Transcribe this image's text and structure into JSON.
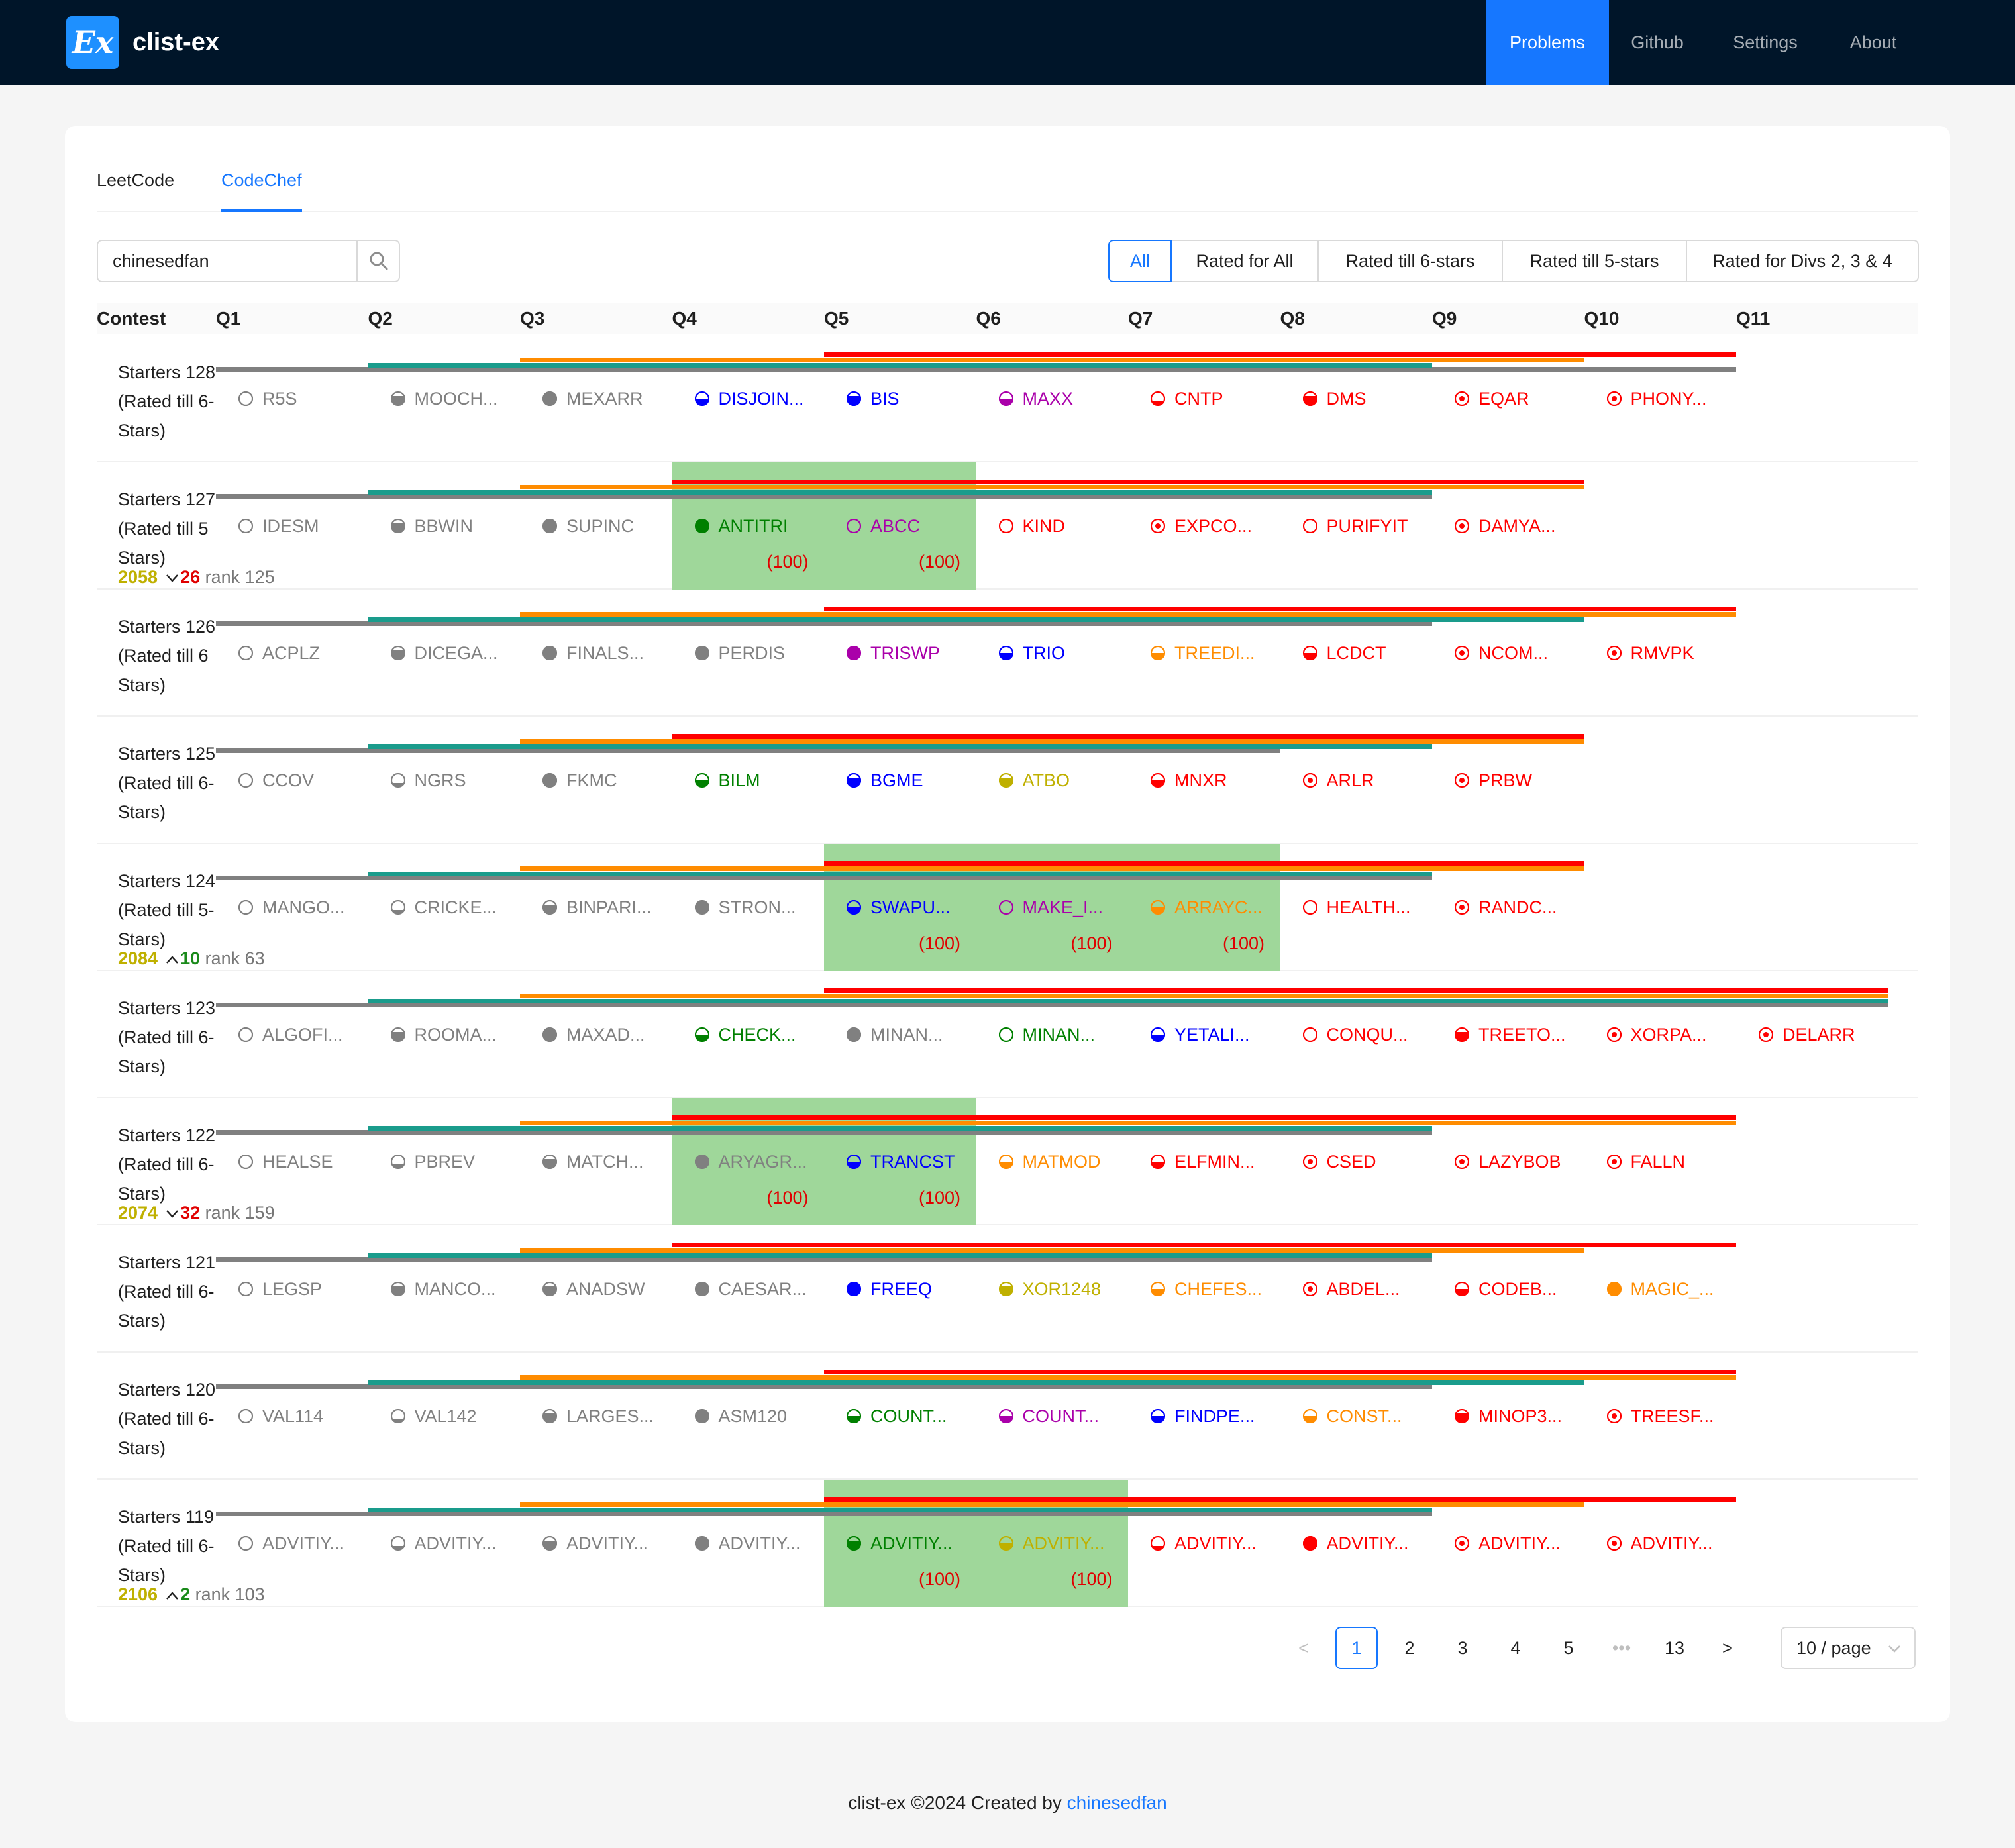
{
  "app": {
    "logo_text": "Ex",
    "title": "clist-ex"
  },
  "nav": [
    {
      "label": "Problems",
      "active": true
    },
    {
      "label": "Github",
      "active": false
    },
    {
      "label": "Settings",
      "active": false
    },
    {
      "label": "About",
      "active": false
    }
  ],
  "tabs": [
    {
      "label": "LeetCode",
      "active": false
    },
    {
      "label": "CodeChef",
      "active": true
    }
  ],
  "search": {
    "value": "chinesedfan",
    "icon": "search-icon"
  },
  "filters": [
    {
      "label": "All",
      "active": true
    },
    {
      "label": "Rated for All",
      "active": false
    },
    {
      "label": "Rated till 6-stars",
      "active": false
    },
    {
      "label": "Rated till 5-stars",
      "active": false
    },
    {
      "label": "Rated for Divs 2, 3 & 4",
      "active": false
    }
  ],
  "table": {
    "headers": [
      "Contest",
      "Q1",
      "Q2",
      "Q3",
      "Q4",
      "Q5",
      "Q6",
      "Q7",
      "Q8",
      "Q9",
      "Q10",
      "Q11"
    ],
    "rows": [
      {
        "name": "Starters 128 (Rated till 6-Stars)",
        "division_ends": [
          10,
          8,
          9,
          10
        ],
        "problems": [
          {
            "code": "R5S",
            "icon": "empty",
            "color": "#808080"
          },
          {
            "code": "MOOCH...",
            "icon": "three-quarter",
            "color": "#808080"
          },
          {
            "code": "MEXARR",
            "icon": "full",
            "color": "#808080"
          },
          {
            "code": "DISJOIN...",
            "icon": "half",
            "color": "#0000ff"
          },
          {
            "code": "BIS",
            "icon": "three-quarter",
            "color": "#0000ff"
          },
          {
            "code": "MAXX",
            "icon": "half",
            "color": "#aa00aa"
          },
          {
            "code": "CNTP",
            "icon": "quarter",
            "color": "#ff0000"
          },
          {
            "code": "DMS",
            "icon": "three-quarter",
            "color": "#ff0000"
          },
          {
            "code": "EQAR",
            "icon": "target",
            "color": "#ff0000"
          },
          {
            "code": "PHONY...",
            "icon": "target",
            "color": "#ff0000"
          }
        ]
      },
      {
        "name": "Starters 127 (Rated till 5 Stars)",
        "division_ends": [
          8,
          8,
          9,
          9
        ],
        "rating": {
          "value": "2058",
          "direction": "down",
          "delta": "26",
          "rank": "rank 125"
        },
        "highlight": [
          3,
          4
        ],
        "problems": [
          {
            "code": "IDESM",
            "icon": "empty",
            "color": "#808080"
          },
          {
            "code": "BBWIN",
            "icon": "three-quarter",
            "color": "#808080"
          },
          {
            "code": "SUPINC",
            "icon": "full",
            "color": "#808080"
          },
          {
            "code": "ANTITRI",
            "icon": "full",
            "color": "#008000",
            "score": "(100)"
          },
          {
            "code": "ABCC",
            "icon": "empty",
            "color": "#aa00aa",
            "score": "(100)"
          },
          {
            "code": "KIND",
            "icon": "empty",
            "color": "#ff0000"
          },
          {
            "code": "EXPCO...",
            "icon": "target",
            "color": "#ff0000"
          },
          {
            "code": "PURIFYIT",
            "icon": "empty",
            "color": "#ff0000"
          },
          {
            "code": "DAMYA...",
            "icon": "target",
            "color": "#ff0000"
          }
        ]
      },
      {
        "name": "Starters 126 (Rated till 6 Stars)",
        "division_ends": [
          8,
          9,
          10,
          10
        ],
        "problems": [
          {
            "code": "ACPLZ",
            "icon": "empty",
            "color": "#808080"
          },
          {
            "code": "DICEGA...",
            "icon": "three-quarter",
            "color": "#808080"
          },
          {
            "code": "FINALS...",
            "icon": "full",
            "color": "#808080"
          },
          {
            "code": "PERDIS",
            "icon": "full",
            "color": "#808080"
          },
          {
            "code": "TRISWP",
            "icon": "full",
            "color": "#aa00aa"
          },
          {
            "code": "TRIO",
            "icon": "half",
            "color": "#0000ff"
          },
          {
            "code": "TREEDI...",
            "icon": "half",
            "color": "#ff8c00"
          },
          {
            "code": "LCDCT",
            "icon": "half",
            "color": "#ff0000"
          },
          {
            "code": "NCOM...",
            "icon": "target",
            "color": "#ff0000"
          },
          {
            "code": "RMVPK",
            "icon": "target",
            "color": "#ff0000"
          }
        ]
      },
      {
        "name": "Starters 125 (Rated till 6-Stars)",
        "division_ends": [
          7,
          8,
          9,
          9
        ],
        "problems": [
          {
            "code": "CCOV",
            "icon": "empty",
            "color": "#808080"
          },
          {
            "code": "NGRS",
            "icon": "quarter",
            "color": "#808080"
          },
          {
            "code": "FKMC",
            "icon": "full",
            "color": "#808080"
          },
          {
            "code": "BILM",
            "icon": "half",
            "color": "#008000"
          },
          {
            "code": "BGME",
            "icon": "three-quarter",
            "color": "#0000ff"
          },
          {
            "code": "ATBO",
            "icon": "three-quarter",
            "color": "#bfb000"
          },
          {
            "code": "MNXR",
            "icon": "half",
            "color": "#ff0000"
          },
          {
            "code": "ARLR",
            "icon": "target",
            "color": "#ff0000"
          },
          {
            "code": "PRBW",
            "icon": "target",
            "color": "#ff0000"
          }
        ]
      },
      {
        "name": "Starters 124 (Rated till 5-Stars)",
        "division_ends": [
          8,
          8,
          9,
          9
        ],
        "rating": {
          "value": "2084",
          "direction": "up",
          "delta": "10",
          "rank": "rank 63"
        },
        "highlight": [
          4,
          6
        ],
        "problems": [
          {
            "code": "MANGO...",
            "icon": "empty",
            "color": "#808080"
          },
          {
            "code": "CRICKE...",
            "icon": "quarter",
            "color": "#808080"
          },
          {
            "code": "BINPARI...",
            "icon": "three-quarter",
            "color": "#808080"
          },
          {
            "code": "STRON...",
            "icon": "full",
            "color": "#808080"
          },
          {
            "code": "SWAPU...",
            "icon": "half",
            "color": "#0000ff",
            "score": "(100)"
          },
          {
            "code": "MAKE_I...",
            "icon": "empty",
            "color": "#aa00aa",
            "score": "(100)"
          },
          {
            "code": "ARRAYC...",
            "icon": "half",
            "color": "#ff8c00",
            "score": "(100)"
          },
          {
            "code": "HEALTH...",
            "icon": "empty",
            "color": "#ff0000"
          },
          {
            "code": "RANDC...",
            "icon": "target",
            "color": "#ff0000"
          }
        ]
      },
      {
        "name": "Starters 123 (Rated till 6-Stars)",
        "division_ends": [
          11,
          11,
          11,
          11
        ],
        "problems": [
          {
            "code": "ALGOFI...",
            "icon": "empty",
            "color": "#808080"
          },
          {
            "code": "ROOMA...",
            "icon": "three-quarter",
            "color": "#808080"
          },
          {
            "code": "MAXAD...",
            "icon": "full",
            "color": "#808080"
          },
          {
            "code": "CHECK...",
            "icon": "half",
            "color": "#008000"
          },
          {
            "code": "MINAN...",
            "icon": "full",
            "color": "#808080"
          },
          {
            "code": "MINAN...",
            "icon": "empty",
            "color": "#008000"
          },
          {
            "code": "YETALI...",
            "icon": "half",
            "color": "#0000ff"
          },
          {
            "code": "CONQU...",
            "icon": "empty",
            "color": "#ff0000"
          },
          {
            "code": "TREETO...",
            "icon": "three-quarter",
            "color": "#ff0000"
          },
          {
            "code": "XORPA...",
            "icon": "target",
            "color": "#ff0000"
          },
          {
            "code": "DELARR",
            "icon": "target",
            "color": "#ff0000"
          }
        ]
      },
      {
        "name": "Starters 122 (Rated till 6-Stars)",
        "division_ends": [
          8,
          8,
          10,
          10
        ],
        "rating": {
          "value": "2074",
          "direction": "down",
          "delta": "32",
          "rank": "rank 159"
        },
        "highlight": [
          3,
          4
        ],
        "problems": [
          {
            "code": "HEALSE",
            "icon": "empty",
            "color": "#808080"
          },
          {
            "code": "PBREV",
            "icon": "quarter",
            "color": "#808080"
          },
          {
            "code": "MATCH...",
            "icon": "three-quarter",
            "color": "#808080"
          },
          {
            "code": "ARYAGR...",
            "icon": "full",
            "color": "#808080",
            "score": "(100)"
          },
          {
            "code": "TRANCST",
            "icon": "half",
            "color": "#0000ff",
            "score": "(100)"
          },
          {
            "code": "MATMOD",
            "icon": "half",
            "color": "#ff8c00"
          },
          {
            "code": "ELFMIN...",
            "icon": "half",
            "color": "#ff0000"
          },
          {
            "code": "CSED",
            "icon": "target",
            "color": "#ff0000"
          },
          {
            "code": "LAZYBOB",
            "icon": "target",
            "color": "#ff0000"
          },
          {
            "code": "FALLN",
            "icon": "target",
            "color": "#ff0000"
          }
        ]
      },
      {
        "name": "Starters 121 (Rated till 6-Stars)",
        "division_ends": [
          8,
          8,
          9,
          10
        ],
        "problems": [
          {
            "code": "LEGSP",
            "icon": "empty",
            "color": "#808080"
          },
          {
            "code": "MANCO...",
            "icon": "three-quarter",
            "color": "#808080"
          },
          {
            "code": "ANADSW",
            "icon": "three-quarter",
            "color": "#808080"
          },
          {
            "code": "CAESAR...",
            "icon": "full",
            "color": "#808080"
          },
          {
            "code": "FREEQ",
            "icon": "full",
            "color": "#0000ff"
          },
          {
            "code": "XOR1248",
            "icon": "three-quarter",
            "color": "#bfb000"
          },
          {
            "code": "CHEFES...",
            "icon": "half",
            "color": "#ff8c00"
          },
          {
            "code": "ABDEL...",
            "icon": "target",
            "color": "#ff0000"
          },
          {
            "code": "CODEB...",
            "icon": "half",
            "color": "#ff0000"
          },
          {
            "code": "MAGIC_...",
            "icon": "full",
            "color": "#ff8c00"
          }
        ]
      },
      {
        "name": "Starters 120 (Rated till 6-Stars)",
        "division_ends": [
          8,
          9,
          10,
          10
        ],
        "problems": [
          {
            "code": "VAL114",
            "icon": "empty",
            "color": "#808080"
          },
          {
            "code": "VAL142",
            "icon": "quarter",
            "color": "#808080"
          },
          {
            "code": "LARGES...",
            "icon": "three-quarter",
            "color": "#808080"
          },
          {
            "code": "ASM120",
            "icon": "full",
            "color": "#808080"
          },
          {
            "code": "COUNT...",
            "icon": "half",
            "color": "#008000"
          },
          {
            "code": "COUNT...",
            "icon": "half",
            "color": "#aa00aa"
          },
          {
            "code": "FINDPE...",
            "icon": "half",
            "color": "#0000ff"
          },
          {
            "code": "CONST...",
            "icon": "half",
            "color": "#ff8c00"
          },
          {
            "code": "MINOP3...",
            "icon": "three-quarter",
            "color": "#ff0000"
          },
          {
            "code": "TREESF...",
            "icon": "target",
            "color": "#ff0000"
          }
        ]
      },
      {
        "name": "Starters 119 (Rated till 6-Stars)",
        "division_ends": [
          8,
          8,
          9,
          10
        ],
        "rating": {
          "value": "2106",
          "direction": "up",
          "delta": "2",
          "rank": "rank 103"
        },
        "highlight": [
          4,
          5
        ],
        "problems": [
          {
            "code": "ADVITIY...",
            "icon": "empty",
            "color": "#808080"
          },
          {
            "code": "ADVITIY...",
            "icon": "quarter",
            "color": "#808080"
          },
          {
            "code": "ADVITIY...",
            "icon": "three-quarter",
            "color": "#808080"
          },
          {
            "code": "ADVITIY...",
            "icon": "full",
            "color": "#808080"
          },
          {
            "code": "ADVITIY...",
            "icon": "three-quarter",
            "color": "#008000",
            "score": "(100)"
          },
          {
            "code": "ADVITIY...",
            "icon": "half",
            "color": "#bfb000",
            "score": "(100)"
          },
          {
            "code": "ADVITIY...",
            "icon": "quarter",
            "color": "#ff0000"
          },
          {
            "code": "ADVITIY...",
            "icon": "full",
            "color": "#ff0000"
          },
          {
            "code": "ADVITIY...",
            "icon": "target",
            "color": "#ff0000"
          },
          {
            "code": "ADVITIY...",
            "icon": "target",
            "color": "#ff0000"
          }
        ]
      }
    ]
  },
  "division_colors": {
    "div4": "#808080",
    "div3": "#1a9c8c",
    "div2": "#ff8c00",
    "div1": "#ff0000"
  },
  "pagination": {
    "prev": "<",
    "next": ">",
    "pages": [
      "1",
      "2",
      "3",
      "4",
      "5"
    ],
    "ellipsis": "•••",
    "last": "13",
    "current": "1",
    "page_size": "10 / page"
  },
  "footer": {
    "text": "clist-ex ©2024 Created by ",
    "link": "chinesedfan"
  }
}
